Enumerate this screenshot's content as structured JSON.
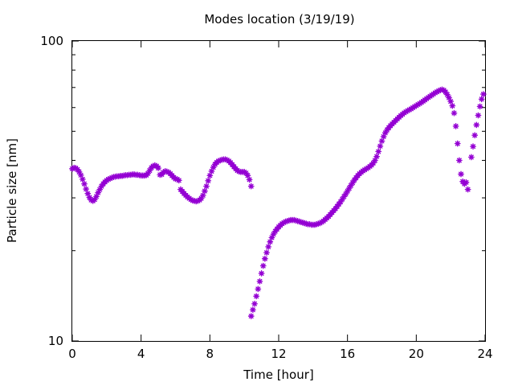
{
  "chart_data": {
    "type": "scatter",
    "title": "Modes location (3/19/19)",
    "xlabel": "Time [hour]",
    "ylabel": "Particle size [nm]",
    "xlim": [
      0,
      24
    ],
    "ylim": [
      10,
      100
    ],
    "yscale": "log",
    "grid": false,
    "legend": "none",
    "marker": "asterisk",
    "color": "#9400D3",
    "x_ticks": [
      0,
      4,
      8,
      12,
      16,
      20,
      24
    ],
    "x_tick_labels": [
      "0",
      "4",
      "8",
      "12",
      "16",
      "20",
      "24"
    ],
    "y_major_ticks": [
      10,
      100
    ],
    "y_tick_labels": [
      "10",
      "100"
    ],
    "y_minor_ticks": [
      20,
      30,
      40,
      50,
      60,
      70,
      80,
      90
    ],
    "series": [
      {
        "points": [
          [
            0.0,
            37.5
          ],
          [
            0.1,
            37.8
          ],
          [
            0.2,
            37.7
          ],
          [
            0.3,
            37.3
          ],
          [
            0.4,
            36.6
          ],
          [
            0.5,
            35.7
          ],
          [
            0.6,
            34.6
          ],
          [
            0.7,
            33.4
          ],
          [
            0.8,
            32.1
          ],
          [
            0.9,
            31.0
          ],
          [
            1.0,
            30.1
          ],
          [
            1.1,
            29.5
          ],
          [
            1.2,
            29.3
          ],
          [
            1.3,
            29.6
          ],
          [
            1.4,
            30.3
          ],
          [
            1.5,
            31.2
          ],
          [
            1.6,
            32.0
          ],
          [
            1.7,
            32.8
          ],
          [
            1.8,
            33.4
          ],
          [
            1.9,
            33.9
          ],
          [
            2.0,
            34.3
          ],
          [
            2.1,
            34.6
          ],
          [
            2.2,
            34.8
          ],
          [
            2.3,
            35.0
          ],
          [
            2.4,
            35.2
          ],
          [
            2.5,
            35.3
          ],
          [
            2.6,
            35.4
          ],
          [
            2.7,
            35.4
          ],
          [
            2.8,
            35.5
          ],
          [
            2.9,
            35.5
          ],
          [
            3.0,
            35.6
          ],
          [
            3.1,
            35.7
          ],
          [
            3.2,
            35.7
          ],
          [
            3.3,
            35.8
          ],
          [
            3.4,
            35.8
          ],
          [
            3.5,
            35.9
          ],
          [
            3.6,
            35.9
          ],
          [
            3.7,
            35.8
          ],
          [
            3.8,
            35.8
          ],
          [
            3.9,
            35.7
          ],
          [
            4.0,
            35.6
          ],
          [
            4.1,
            35.6
          ],
          [
            4.2,
            35.6
          ],
          [
            4.3,
            35.7
          ],
          [
            4.4,
            36.2
          ],
          [
            4.5,
            37.0
          ],
          [
            4.6,
            37.8
          ],
          [
            4.7,
            38.3
          ],
          [
            4.8,
            38.5
          ],
          [
            4.9,
            38.3
          ],
          [
            5.0,
            37.7
          ],
          [
            5.1,
            35.8
          ],
          [
            5.2,
            35.9
          ],
          [
            5.3,
            36.5
          ],
          [
            5.4,
            36.8
          ],
          [
            5.5,
            36.7
          ],
          [
            5.6,
            36.5
          ],
          [
            5.7,
            36.1
          ],
          [
            5.8,
            35.6
          ],
          [
            5.9,
            35.1
          ],
          [
            6.0,
            34.7
          ],
          [
            6.1,
            34.6
          ],
          [
            6.2,
            34.3
          ],
          [
            6.3,
            32.0
          ],
          [
            6.4,
            31.5
          ],
          [
            6.5,
            31.0
          ],
          [
            6.6,
            30.6
          ],
          [
            6.7,
            30.2
          ],
          [
            6.8,
            29.9
          ],
          [
            6.9,
            29.6
          ],
          [
            7.0,
            29.4
          ],
          [
            7.1,
            29.3
          ],
          [
            7.2,
            29.2
          ],
          [
            7.3,
            29.3
          ],
          [
            7.4,
            29.5
          ],
          [
            7.5,
            29.9
          ],
          [
            7.6,
            30.6
          ],
          [
            7.7,
            31.6
          ],
          [
            7.8,
            32.8
          ],
          [
            7.9,
            34.2
          ],
          [
            8.0,
            35.6
          ],
          [
            8.1,
            36.8
          ],
          [
            8.2,
            37.9
          ],
          [
            8.3,
            38.8
          ],
          [
            8.4,
            39.4
          ],
          [
            8.5,
            39.8
          ],
          [
            8.6,
            40.0
          ],
          [
            8.7,
            40.2
          ],
          [
            8.8,
            40.3
          ],
          [
            8.9,
            40.3
          ],
          [
            9.0,
            40.1
          ],
          [
            9.1,
            39.8
          ],
          [
            9.2,
            39.3
          ],
          [
            9.3,
            38.7
          ],
          [
            9.4,
            38.1
          ],
          [
            9.5,
            37.5
          ],
          [
            9.6,
            37.0
          ],
          [
            9.7,
            36.7
          ],
          [
            9.8,
            36.6
          ],
          [
            9.9,
            36.6
          ],
          [
            10.0,
            36.6
          ],
          [
            10.1,
            36.3
          ],
          [
            10.2,
            35.6
          ],
          [
            10.3,
            34.5
          ],
          [
            10.4,
            32.8
          ],
          [
            10.4,
            12.1
          ],
          [
            10.5,
            12.7
          ],
          [
            10.6,
            13.3
          ],
          [
            10.7,
            14.1
          ],
          [
            10.8,
            14.9
          ],
          [
            10.9,
            15.8
          ],
          [
            11.0,
            16.8
          ],
          [
            11.1,
            17.8
          ],
          [
            11.2,
            18.8
          ],
          [
            11.3,
            19.7
          ],
          [
            11.4,
            20.6
          ],
          [
            11.5,
            21.4
          ],
          [
            11.6,
            22.1
          ],
          [
            11.7,
            22.7
          ],
          [
            11.8,
            23.2
          ],
          [
            11.9,
            23.6
          ],
          [
            12.0,
            24.0
          ],
          [
            12.1,
            24.3
          ],
          [
            12.2,
            24.6
          ],
          [
            12.3,
            24.8
          ],
          [
            12.4,
            25.0
          ],
          [
            12.5,
            25.1
          ],
          [
            12.6,
            25.2
          ],
          [
            12.7,
            25.3
          ],
          [
            12.8,
            25.3
          ],
          [
            12.9,
            25.3
          ],
          [
            13.0,
            25.2
          ],
          [
            13.1,
            25.1
          ],
          [
            13.2,
            25.0
          ],
          [
            13.3,
            24.9
          ],
          [
            13.4,
            24.8
          ],
          [
            13.5,
            24.7
          ],
          [
            13.6,
            24.6
          ],
          [
            13.7,
            24.5
          ],
          [
            13.8,
            24.5
          ],
          [
            13.9,
            24.4
          ],
          [
            14.0,
            24.4
          ],
          [
            14.1,
            24.4
          ],
          [
            14.2,
            24.5
          ],
          [
            14.3,
            24.6
          ],
          [
            14.4,
            24.7
          ],
          [
            14.5,
            24.9
          ],
          [
            14.6,
            25.1
          ],
          [
            14.7,
            25.4
          ],
          [
            14.8,
            25.7
          ],
          [
            14.9,
            26.0
          ],
          [
            15.0,
            26.4
          ],
          [
            15.1,
            26.8
          ],
          [
            15.2,
            27.2
          ],
          [
            15.3,
            27.6
          ],
          [
            15.4,
            28.1
          ],
          [
            15.5,
            28.6
          ],
          [
            15.6,
            29.1
          ],
          [
            15.7,
            29.7
          ],
          [
            15.8,
            30.3
          ],
          [
            15.9,
            30.9
          ],
          [
            16.0,
            31.6
          ],
          [
            16.1,
            32.3
          ],
          [
            16.2,
            33.0
          ],
          [
            16.3,
            33.7
          ],
          [
            16.4,
            34.4
          ],
          [
            16.5,
            35.0
          ],
          [
            16.6,
            35.6
          ],
          [
            16.7,
            36.1
          ],
          [
            16.8,
            36.5
          ],
          [
            16.9,
            36.9
          ],
          [
            17.0,
            37.2
          ],
          [
            17.1,
            37.5
          ],
          [
            17.2,
            37.8
          ],
          [
            17.3,
            38.2
          ],
          [
            17.4,
            38.6
          ],
          [
            17.5,
            39.2
          ],
          [
            17.6,
            40.0
          ],
          [
            17.7,
            41.2
          ],
          [
            17.8,
            42.8
          ],
          [
            17.9,
            44.6
          ],
          [
            18.0,
            46.4
          ],
          [
            18.1,
            48.0
          ],
          [
            18.2,
            49.4
          ],
          [
            18.3,
            50.5
          ],
          [
            18.4,
            51.4
          ],
          [
            18.5,
            52.2
          ],
          [
            18.6,
            52.9
          ],
          [
            18.7,
            53.6
          ],
          [
            18.8,
            54.3
          ],
          [
            18.9,
            55.0
          ],
          [
            19.0,
            55.7
          ],
          [
            19.1,
            56.4
          ],
          [
            19.2,
            57.0
          ],
          [
            19.3,
            57.6
          ],
          [
            19.4,
            58.1
          ],
          [
            19.5,
            58.6
          ],
          [
            19.6,
            59.0
          ],
          [
            19.7,
            59.4
          ],
          [
            19.8,
            59.9
          ],
          [
            19.9,
            60.4
          ],
          [
            20.0,
            60.9
          ],
          [
            20.1,
            61.4
          ],
          [
            20.2,
            61.9
          ],
          [
            20.3,
            62.4
          ],
          [
            20.4,
            63.0
          ],
          [
            20.5,
            63.6
          ],
          [
            20.6,
            64.2
          ],
          [
            20.7,
            64.8
          ],
          [
            20.8,
            65.4
          ],
          [
            20.9,
            66.0
          ],
          [
            21.0,
            66.6
          ],
          [
            21.1,
            67.2
          ],
          [
            21.2,
            67.7
          ],
          [
            21.3,
            68.2
          ],
          [
            21.4,
            68.6
          ],
          [
            21.5,
            68.9
          ],
          [
            21.6,
            68.5
          ],
          [
            21.7,
            67.6
          ],
          [
            21.8,
            66.3
          ],
          [
            21.9,
            64.7
          ],
          [
            22.0,
            62.9
          ],
          [
            22.1,
            60.8
          ],
          [
            22.2,
            57.5
          ],
          [
            22.3,
            52.0
          ],
          [
            22.4,
            45.5
          ],
          [
            22.5,
            40.0
          ],
          [
            22.6,
            36.0
          ],
          [
            22.7,
            34.0
          ],
          [
            22.8,
            33.4
          ],
          [
            22.9,
            33.8
          ],
          [
            23.0,
            32.0
          ],
          [
            23.2,
            41.0
          ],
          [
            23.3,
            44.5
          ],
          [
            23.4,
            48.5
          ],
          [
            23.5,
            52.5
          ],
          [
            23.6,
            56.5
          ],
          [
            23.7,
            60.5
          ],
          [
            23.8,
            64.0
          ],
          [
            23.9,
            66.5
          ]
        ]
      }
    ]
  }
}
